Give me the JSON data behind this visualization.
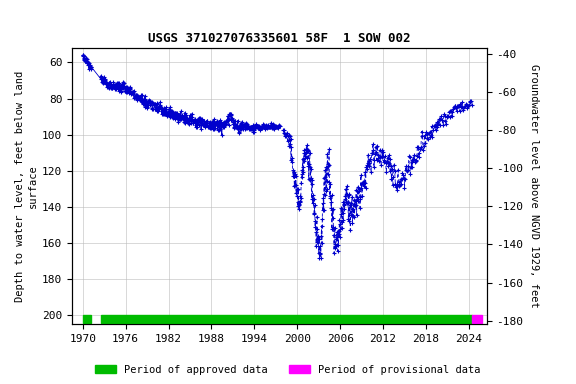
{
  "title": "USGS 371027076335601 58F  1 SOW 002",
  "ylabel_left": "Depth to water level, feet below land\nsurface",
  "ylabel_right": "Groundwater level above NGVD 1929, feet",
  "xlim": [
    1968.5,
    2026.5
  ],
  "ylim_left": [
    205,
    52
  ],
  "ylim_right": [
    -182,
    -37
  ],
  "xticks": [
    1970,
    1976,
    1982,
    1988,
    1994,
    2000,
    2006,
    2012,
    2018,
    2024
  ],
  "yticks_left": [
    60,
    80,
    100,
    120,
    140,
    160,
    180,
    200
  ],
  "yticks_right": [
    -40,
    -60,
    -80,
    -100,
    -120,
    -140,
    -160,
    -180
  ],
  "line_color": "#0000CC",
  "legend_approved_color": "#00BB00",
  "legend_provisional_color": "#FF00FF",
  "legend_approved_label": "Period of approved data",
  "legend_provisional_label": "Period of provisional data",
  "background_color": "#ffffff",
  "grid_color": "#bbbbbb",
  "title_fontsize": 9,
  "label_fontsize": 7.5,
  "tick_fontsize": 8,
  "approved_bar_start": 1970.0,
  "approved_bar_end": 2024.5,
  "gap1_start": 1971.2,
  "gap1_end": 1972.5,
  "provisional_bar_start": 2024.5,
  "provisional_bar_end": 2025.8
}
